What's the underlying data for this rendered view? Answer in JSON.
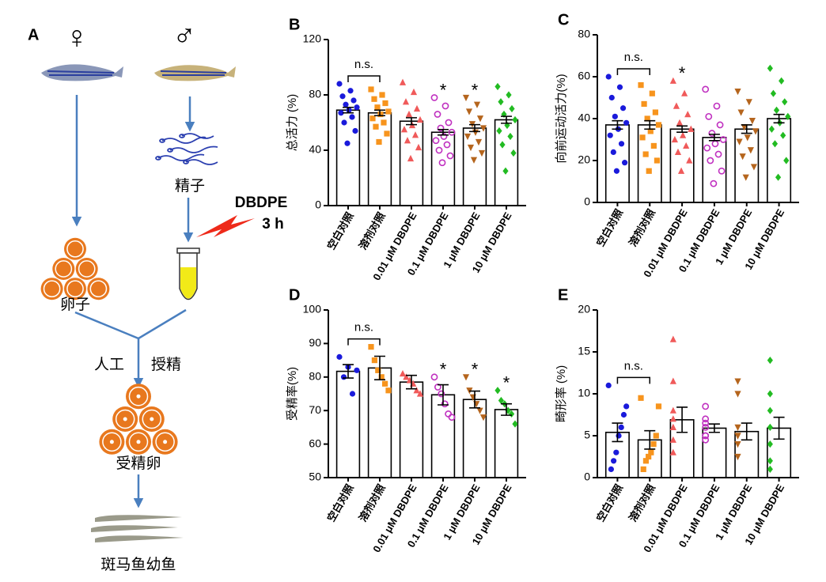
{
  "diagram": {
    "panel": "A",
    "female": "♀",
    "male": "♂",
    "sperm": "精子",
    "treatment": "DBDPE",
    "duration": "3 h",
    "eggs": "卵子",
    "fertilization_left": "人工",
    "fertilization_right": "授精",
    "fertilized_eggs": "受精卵",
    "larvae": "斑马鱼幼鱼"
  },
  "chart_data": [
    {
      "type": "bar",
      "panel": "B",
      "ylabel": "总活力 (%)",
      "categories": [
        "空白对照",
        "溶剂对照",
        "0.01 μM DBDPE",
        "0.1 μM DBDPE",
        "1 μM DBDPE",
        "10 μM DBDPE"
      ],
      "values": [
        69,
        67,
        61,
        53,
        56,
        62
      ],
      "errors": [
        2,
        2,
        2.5,
        2,
        2.5,
        2.5
      ],
      "points": [
        [
          88,
          83,
          79,
          76,
          73,
          71,
          69,
          67,
          64,
          60,
          54,
          45
        ],
        [
          84,
          80,
          77,
          74,
          71,
          68,
          66,
          63,
          60,
          57,
          52,
          46
        ],
        [
          89,
          82,
          75,
          70,
          66,
          62,
          58,
          55,
          51,
          47,
          42,
          34
        ],
        [
          78,
          72,
          66,
          60,
          56,
          53,
          50,
          47,
          44,
          40,
          36,
          31
        ],
        [
          78,
          73,
          68,
          63,
          59,
          56,
          53,
          50,
          46,
          42,
          38,
          33
        ],
        [
          86,
          80,
          75,
          70,
          66,
          62,
          58,
          54,
          50,
          44,
          38,
          25
        ]
      ],
      "colors": [
        "#1a1adb",
        "#f7941d",
        "#f05a5a",
        "#c030c0",
        "#b5651d",
        "#22bb22"
      ],
      "markers": [
        "circle",
        "square",
        "triangle",
        "circle-open",
        "triangle-down",
        "diamond"
      ],
      "bracket": "n.s.",
      "stars": [
        null,
        null,
        null,
        "*",
        "*",
        null
      ],
      "ylim": [
        0,
        120
      ],
      "yticks": [
        0,
        40,
        80,
        120
      ]
    },
    {
      "type": "bar",
      "panel": "C",
      "ylabel": "向前运动活力(%)",
      "categories": [
        "空白对照",
        "溶剂对照",
        "0.01 μM DBDPE",
        "0.1 μM DBDPE",
        "1 μM DBDPE",
        "10 μM DBDPE"
      ],
      "values": [
        37,
        37,
        35,
        31,
        35,
        40
      ],
      "errors": [
        2,
        2,
        1.5,
        1.5,
        2,
        2
      ],
      "points": [
        [
          60,
          55,
          50,
          45,
          41,
          38,
          35,
          32,
          28,
          24,
          19,
          15
        ],
        [
          56,
          52,
          47,
          43,
          40,
          37,
          34,
          31,
          27,
          23,
          20,
          15
        ],
        [
          58,
          52,
          46,
          42,
          38,
          35,
          32,
          30,
          27,
          24,
          20,
          15
        ],
        [
          54,
          46,
          41,
          37,
          33,
          30,
          28,
          26,
          23,
          20,
          15,
          9
        ],
        [
          53,
          48,
          43,
          39,
          36,
          34,
          31,
          29,
          25,
          22,
          17,
          12
        ],
        [
          64,
          58,
          52,
          48,
          44,
          41,
          38,
          35,
          32,
          28,
          20,
          12
        ]
      ],
      "colors": [
        "#1a1adb",
        "#f7941d",
        "#f05a5a",
        "#c030c0",
        "#b5651d",
        "#22bb22"
      ],
      "markers": [
        "circle",
        "square",
        "triangle",
        "circle-open",
        "triangle-down",
        "diamond"
      ],
      "bracket": "n.s.",
      "stars": [
        null,
        null,
        "*",
        null,
        null,
        null
      ],
      "ylim": [
        0,
        80
      ],
      "yticks": [
        0,
        20,
        40,
        60,
        80
      ]
    },
    {
      "type": "bar",
      "panel": "D",
      "ylabel": "受精率(%)",
      "categories": [
        "空白对照",
        "溶剂对照",
        "0.01 μM DBDPE",
        "0.1 μM DBDPE",
        "1 μM DBDPE",
        "10 μM DBDPE"
      ],
      "values": [
        81.7,
        82.7,
        78.5,
        74.7,
        73.3,
        70.3
      ],
      "errors": [
        2,
        3.5,
        2,
        3,
        2.5,
        1.7
      ],
      "points": [
        [
          86,
          83,
          82,
          80,
          75
        ],
        [
          89,
          85,
          82,
          80,
          78,
          76
        ],
        [
          81,
          80,
          79,
          78,
          76,
          75
        ],
        [
          80,
          77,
          75,
          72,
          69,
          68
        ],
        [
          80,
          76,
          74,
          72,
          70,
          68
        ],
        [
          76,
          73,
          72,
          70,
          69,
          66
        ]
      ],
      "colors": [
        "#1a1adb",
        "#f7941d",
        "#f05a5a",
        "#c030c0",
        "#b5651d",
        "#22bb22"
      ],
      "markers": [
        "circle",
        "square",
        "triangle",
        "circle-open",
        "triangle-down",
        "diamond"
      ],
      "bracket": "n.s.",
      "stars": [
        null,
        null,
        null,
        "*",
        "*",
        "*"
      ],
      "ylim": [
        50,
        100
      ],
      "yticks": [
        50,
        60,
        70,
        80,
        90,
        100
      ]
    },
    {
      "type": "bar",
      "panel": "E",
      "ylabel": "畸形率 (%)",
      "categories": [
        "空白对照",
        "溶剂对照",
        "0.01 μM DBDPE",
        "0.1 μM DBDPE",
        "1 μM DBDPE",
        "10 μM DBDPE"
      ],
      "values": [
        5.4,
        4.5,
        6.9,
        5.9,
        5.5,
        5.9
      ],
      "errors": [
        1.1,
        1.1,
        1.5,
        0.5,
        1.0,
        1.3
      ],
      "points": [
        [
          11,
          8.5,
          7.5,
          6,
          5,
          3,
          2,
          1
        ],
        [
          9.5,
          8.5,
          5,
          4,
          3,
          2.5,
          2,
          1
        ],
        [
          16.5,
          11.5,
          8,
          7,
          6,
          4.5,
          3
        ],
        [
          8.5,
          7,
          6.5,
          6,
          5,
          5,
          4.5
        ],
        [
          11.5,
          10,
          6,
          5,
          5,
          4,
          2.5
        ],
        [
          14,
          10,
          8,
          6,
          4,
          2,
          1
        ]
      ],
      "colors": [
        "#1a1adb",
        "#f7941d",
        "#f05a5a",
        "#c030c0",
        "#b5651d",
        "#22bb22"
      ],
      "markers": [
        "circle",
        "square",
        "triangle",
        "circle-open",
        "triangle-down",
        "diamond"
      ],
      "bracket": "n.s.",
      "stars": [
        null,
        null,
        null,
        null,
        null,
        null
      ],
      "ylim": [
        0,
        20
      ],
      "yticks": [
        0,
        5,
        10,
        15,
        20
      ]
    }
  ]
}
